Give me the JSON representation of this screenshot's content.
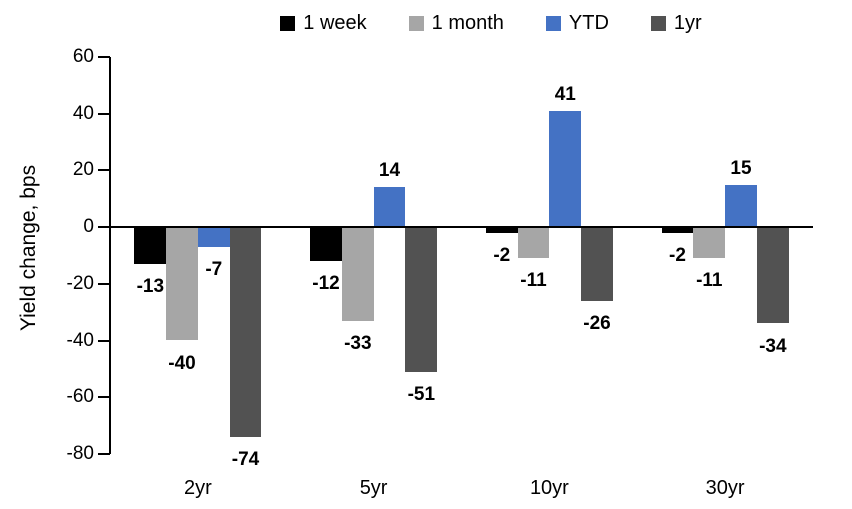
{
  "chart_data": {
    "type": "bar",
    "title": "",
    "ylabel": "Yield change, bps",
    "xlabel": "",
    "categories": [
      "2yr",
      "5yr",
      "10yr",
      "30yr"
    ],
    "series": [
      {
        "name": "1 week",
        "color": "#000000",
        "values": [
          -13,
          -12,
          -2,
          -2
        ]
      },
      {
        "name": "1 month",
        "color": "#A6A6A6",
        "values": [
          -40,
          -33,
          -11,
          -11
        ]
      },
      {
        "name": "YTD",
        "color": "#4472C4",
        "values": [
          -7,
          14,
          41,
          15
        ]
      },
      {
        "name": "1yr",
        "color": "#525252",
        "values": [
          -74,
          -51,
          -26,
          -34
        ]
      }
    ],
    "ylim": [
      -80,
      60
    ],
    "ytick_step": 20,
    "legend_position": "top",
    "grid": false,
    "axis_color": "#000000"
  }
}
